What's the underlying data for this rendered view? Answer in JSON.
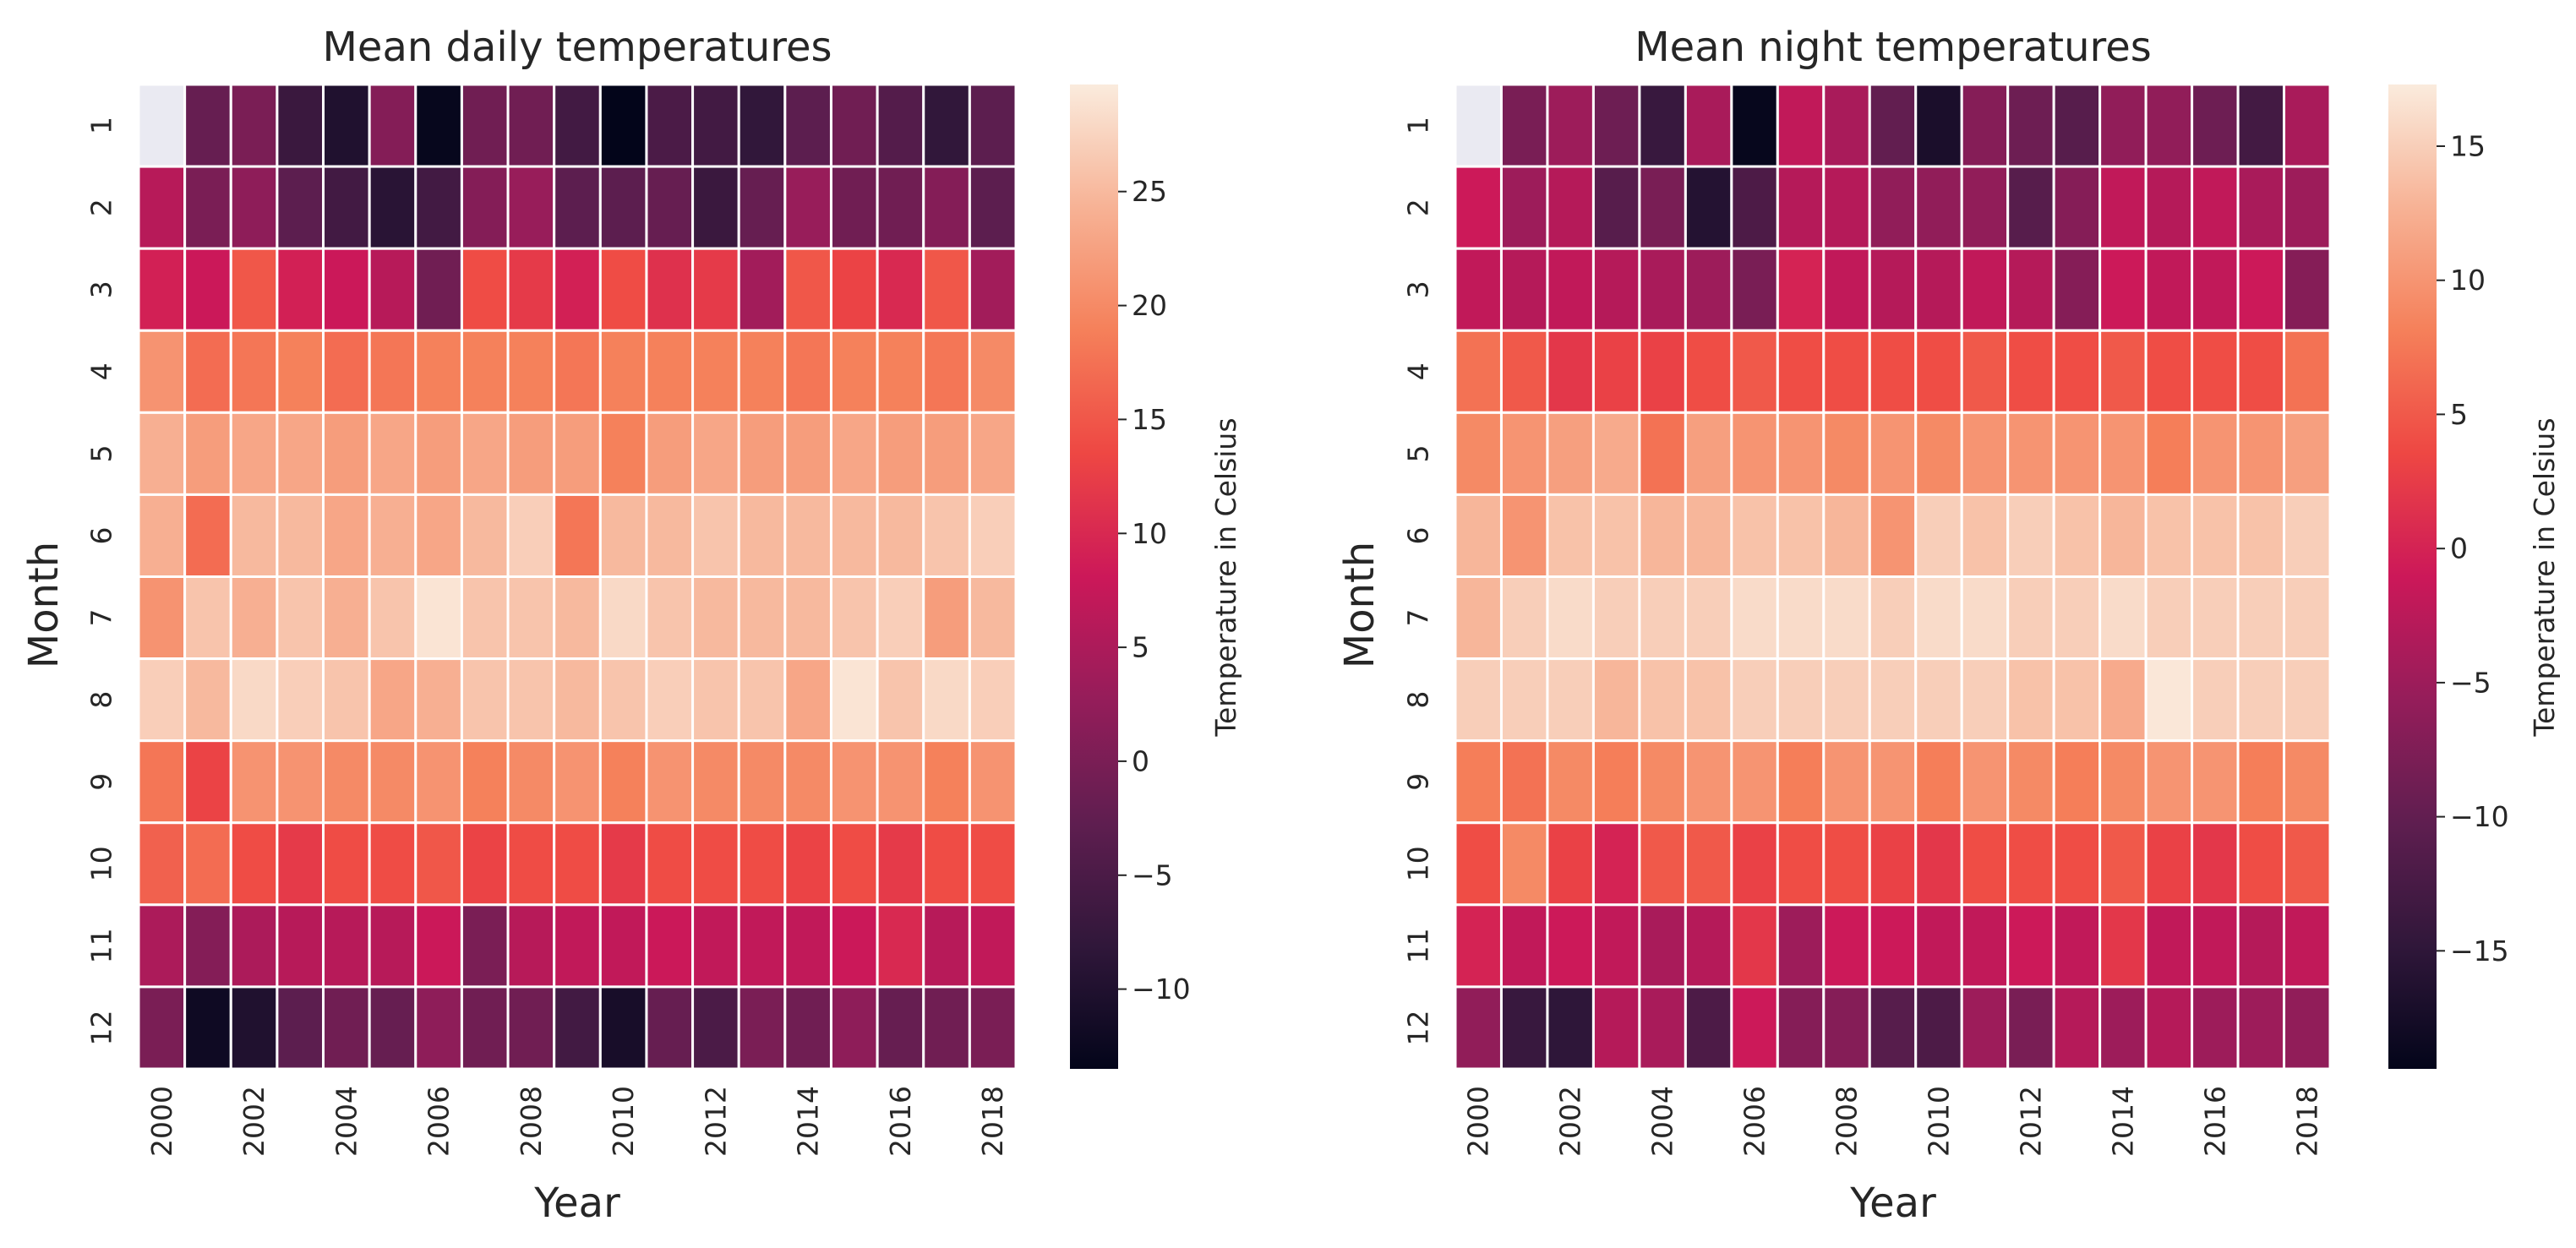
{
  "chart_data": [
    {
      "type": "heatmap",
      "title": "Mean daily temperatures",
      "xlabel": "Year",
      "ylabel": "Month",
      "x": [
        2000,
        2001,
        2002,
        2003,
        2004,
        2005,
        2006,
        2007,
        2008,
        2009,
        2010,
        2011,
        2012,
        2013,
        2014,
        2015,
        2016,
        2017,
        2018
      ],
      "x_tick_labels": [
        "2000",
        "2002",
        "2004",
        "2006",
        "2008",
        "2010",
        "2012",
        "2014",
        "2016",
        "2018"
      ],
      "y": [
        "1",
        "2",
        "3",
        "4",
        "5",
        "6",
        "7",
        "8",
        "9",
        "10",
        "11",
        "12"
      ],
      "missing": [
        [
          0,
          0
        ]
      ],
      "values": [
        [
          null,
          -2,
          0,
          -7,
          -10,
          1,
          -13,
          -1,
          -1,
          -6,
          -14,
          -5,
          -6,
          -8,
          -3,
          -1,
          -4,
          -8,
          -3
        ],
        [
          6,
          0,
          2,
          -3,
          -6,
          -9,
          -6,
          1,
          3,
          -3,
          -3,
          -2,
          -7,
          -2,
          3,
          -1,
          -1,
          1,
          -3
        ],
        [
          9,
          8,
          15,
          9,
          8,
          6,
          -1,
          14,
          12,
          9,
          14,
          11,
          12,
          4,
          15,
          13,
          10,
          15,
          4
        ],
        [
          21,
          17,
          18,
          19,
          17,
          18,
          19,
          19,
          19,
          18,
          19,
          19,
          19,
          19,
          18,
          19,
          19,
          18,
          20
        ],
        [
          24,
          22,
          23,
          23,
          22,
          23,
          22,
          23,
          22,
          22,
          19,
          22,
          23,
          22,
          22,
          23,
          22,
          22,
          23
        ],
        [
          24,
          17,
          25,
          25,
          23,
          24,
          23,
          25,
          27,
          18,
          25,
          25,
          26,
          25,
          25,
          25,
          25,
          26,
          27
        ],
        [
          21,
          26,
          24,
          26,
          24,
          26,
          29,
          26,
          26,
          25,
          28,
          26,
          25,
          25,
          25,
          26,
          27,
          22,
          25
        ],
        [
          27,
          25,
          28,
          27,
          26,
          23,
          24,
          26,
          26,
          25,
          26,
          27,
          26,
          26,
          23,
          29,
          26,
          28,
          27
        ],
        [
          18,
          13,
          21,
          21,
          20,
          20,
          21,
          19,
          20,
          21,
          19,
          21,
          20,
          20,
          20,
          21,
          21,
          19,
          21
        ],
        [
          16,
          17,
          14,
          12,
          14,
          14,
          15,
          13,
          14,
          14,
          12,
          14,
          14,
          14,
          13,
          14,
          12,
          14,
          14
        ],
        [
          5,
          1,
          5,
          6,
          6,
          6,
          8,
          0,
          6,
          7,
          7,
          8,
          7,
          7,
          7,
          8,
          10,
          6,
          7
        ],
        [
          0,
          -12,
          -10,
          -3,
          -1,
          -2,
          2,
          -1,
          -1,
          -6,
          -11,
          -2,
          -5,
          0,
          -1,
          2,
          -2,
          -1,
          0
        ]
      ],
      "colorbar": {
        "label": "Temperature in Celsius",
        "range": [
          -13.5,
          29.7
        ],
        "ticks": [
          "−10",
          "−5",
          "0",
          "5",
          "10",
          "15",
          "20",
          "25"
        ]
      },
      "colormap": "rocket"
    },
    {
      "type": "heatmap",
      "title": "Mean night temperatures",
      "xlabel": "Year",
      "ylabel": "Month",
      "x": [
        2000,
        2001,
        2002,
        2003,
        2004,
        2005,
        2006,
        2007,
        2008,
        2009,
        2010,
        2011,
        2012,
        2013,
        2014,
        2015,
        2016,
        2017,
        2018
      ],
      "x_tick_labels": [
        "2000",
        "2002",
        "2004",
        "2006",
        "2008",
        "2010",
        "2012",
        "2014",
        "2016",
        "2018"
      ],
      "y": [
        "1",
        "2",
        "3",
        "4",
        "5",
        "6",
        "7",
        "8",
        "9",
        "10",
        "11",
        "12"
      ],
      "missing": [
        [
          0,
          0
        ]
      ],
      "values": [
        [
          null,
          -8,
          -5,
          -9,
          -14,
          -4,
          -19,
          -2,
          -4,
          -10,
          -17,
          -7,
          -9,
          -11,
          -6,
          -6,
          -9,
          -13,
          -4
        ],
        [
          -1,
          -5,
          -3,
          -11,
          -8,
          -16,
          -12,
          -3,
          -3,
          -6,
          -6,
          -6,
          -11,
          -7,
          -2,
          -3,
          -2,
          -4,
          -5
        ],
        [
          -2,
          -3,
          -2,
          -3,
          -4,
          -5,
          -8,
          0,
          -2,
          -3,
          -3,
          -2,
          -3,
          -7,
          -1,
          -2,
          -2,
          -1,
          -7
        ],
        [
          7,
          5,
          2,
          3,
          3,
          4,
          5,
          4,
          4,
          4,
          4,
          5,
          4,
          4,
          5,
          4,
          4,
          4,
          7
        ],
        [
          9,
          10,
          11,
          12,
          7,
          11,
          10,
          10,
          9,
          10,
          9,
          10,
          10,
          10,
          10,
          8,
          10,
          10,
          11
        ],
        [
          13,
          10,
          14,
          14,
          13,
          13,
          14,
          14,
          13,
          10,
          15,
          14,
          15,
          14,
          13,
          14,
          14,
          14,
          15
        ],
        [
          13,
          15,
          16,
          15,
          15,
          15,
          16,
          16,
          16,
          15,
          16,
          16,
          15,
          15,
          16,
          15,
          15,
          15,
          15
        ],
        [
          15,
          15,
          15,
          13,
          14,
          14,
          15,
          15,
          15,
          15,
          15,
          15,
          14,
          14,
          12,
          17,
          15,
          15,
          15
        ],
        [
          8,
          7,
          9,
          8,
          9,
          10,
          10,
          8,
          10,
          10,
          8,
          10,
          9,
          8,
          9,
          10,
          10,
          8,
          9
        ],
        [
          4,
          9,
          3,
          0,
          5,
          5,
          3,
          4,
          4,
          3,
          2,
          4,
          4,
          4,
          5,
          3,
          2,
          4,
          5
        ],
        [
          0,
          -2,
          -1,
          -2,
          -4,
          -3,
          2,
          -5,
          -1,
          -1,
          -2,
          -2,
          -1,
          -2,
          2,
          -2,
          -2,
          -3,
          -2
        ],
        [
          -6,
          -14,
          -15,
          -3,
          -4,
          -12,
          -1,
          -7,
          -7,
          -11,
          -12,
          -5,
          -8,
          -3,
          -5,
          -3,
          -5,
          -5,
          -6
        ]
      ],
      "colorbar": {
        "label": "Temperature in Celsius",
        "range": [
          -19.4,
          17.3
        ],
        "ticks": [
          "−15",
          "−10",
          "−5",
          "0",
          "5",
          "10",
          "15"
        ]
      },
      "colormap": "rocket"
    }
  ]
}
